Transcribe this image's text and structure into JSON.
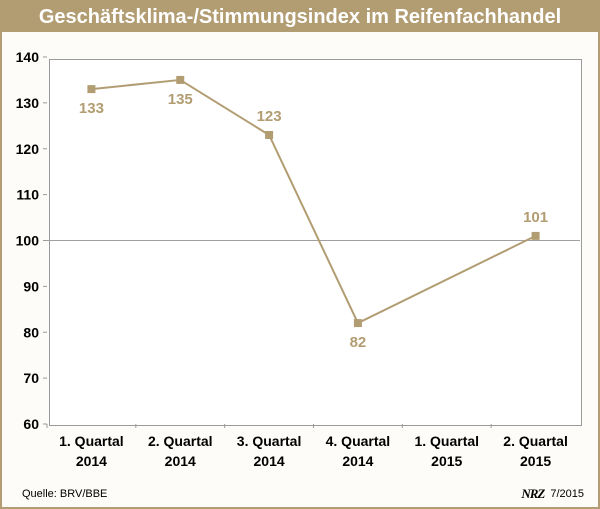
{
  "chart_data": {
    "type": "line",
    "title": "Geschäftsklima-/Stimmungsindex im Reifenfachhandel",
    "categories": [
      [
        "1. Quartal",
        "2014"
      ],
      [
        "2. Quartal",
        "2014"
      ],
      [
        "3. Quartal",
        "2014"
      ],
      [
        "4. Quartal",
        "2014"
      ],
      [
        "1. Quartal",
        "2015"
      ],
      [
        "2. Quartal",
        "2015"
      ]
    ],
    "values": [
      133,
      135,
      123,
      82,
      null,
      101
    ],
    "data_labels": [
      "133",
      "135",
      "123",
      "82",
      "",
      "101"
    ],
    "ylim": [
      60,
      140
    ],
    "yticks": [
      60,
      70,
      80,
      90,
      100,
      110,
      120,
      130,
      140
    ],
    "reference_line": 100,
    "grid": false,
    "colors": {
      "series": "#b29d73",
      "reference": "#a0a0a0",
      "frame": "#b29d73"
    }
  },
  "footer": {
    "source": "Quelle: BRV/BBE",
    "logo": "NRZ",
    "date": "7/2015"
  }
}
